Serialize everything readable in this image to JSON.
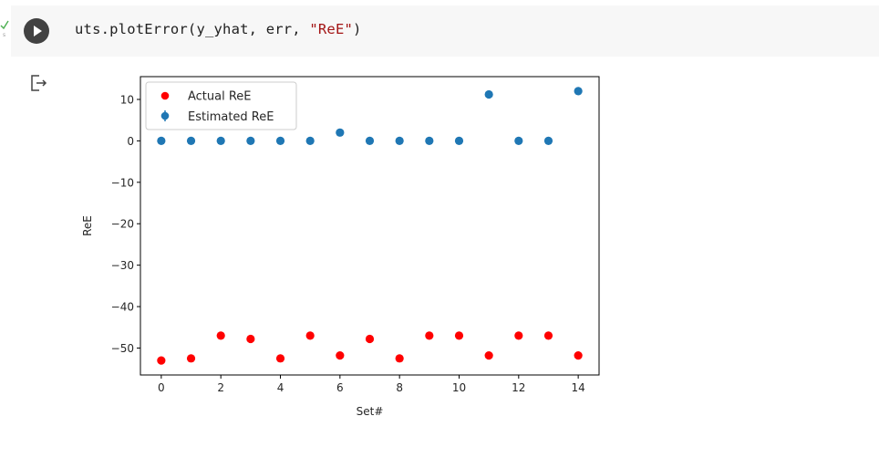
{
  "cell": {
    "code_prefix": "uts.plotError(y_yhat, err, ",
    "code_string": "\"ReE\"",
    "code_suffix": ")",
    "run_icon": "play-icon",
    "output_icon": "output-redirect-icon"
  },
  "colors": {
    "actual": "#ff0000",
    "estimated": "#1f77b4",
    "cell_bg": "#f7f7f7",
    "run_button": "#424242",
    "string_literal": "#a31515"
  },
  "chart_data": {
    "type": "scatter",
    "title": "",
    "xlabel": "Set#",
    "ylabel": "ReE",
    "xlim": [
      -0.7,
      14.7
    ],
    "ylim": [
      -56.5,
      15.5
    ],
    "xticks": [
      0,
      2,
      4,
      6,
      8,
      10,
      12,
      14
    ],
    "yticks": [
      10,
      0,
      -10,
      -20,
      -30,
      -40,
      -50
    ],
    "xtick_labels": [
      "0",
      "2",
      "4",
      "6",
      "8",
      "10",
      "12",
      "14"
    ],
    "ytick_labels": [
      "10",
      "0",
      "−10",
      "−20",
      "−30",
      "−40",
      "−50"
    ],
    "grid": false,
    "legend_position": "top-left",
    "series": [
      {
        "name": "Actual ReE",
        "marker": "circle",
        "x": [
          0,
          1,
          2,
          3,
          4,
          5,
          6,
          7,
          8,
          9,
          10,
          11,
          12,
          13,
          14
        ],
        "values": [
          -53,
          -52.5,
          -47,
          -47.8,
          -52.5,
          -47,
          -51.8,
          -47.8,
          -52.5,
          -47,
          -47,
          -51.8,
          -47,
          -47,
          -51.8
        ]
      },
      {
        "name": "Estimated ReE",
        "marker": "circle-errorbar",
        "x": [
          0,
          1,
          2,
          3,
          4,
          5,
          6,
          7,
          8,
          9,
          10,
          11,
          12,
          13,
          14
        ],
        "values": [
          0,
          0,
          0,
          0,
          0,
          0,
          2,
          0,
          0,
          0,
          0,
          11.2,
          0,
          0,
          12
        ]
      }
    ]
  }
}
